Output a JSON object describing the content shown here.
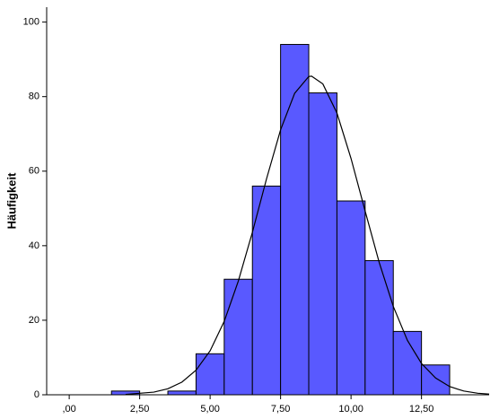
{
  "chart_data": {
    "type": "histogram",
    "y_label": "Häufigkeit",
    "bins": [
      1.5,
      2.5,
      3.5,
      4.5,
      5.5,
      6.5,
      7.5,
      8.5,
      9.5,
      10.5,
      11.5,
      12.5,
      13.5
    ],
    "counts": [
      1,
      0,
      1,
      11,
      31,
      56,
      94,
      81,
      52,
      36,
      17,
      8
    ],
    "color": "#5959ff",
    "curve": {
      "color": "#000000",
      "x": [
        2,
        3,
        3.5,
        4,
        4.5,
        5,
        5.5,
        6,
        6.5,
        7,
        7.5,
        8,
        8.5,
        8.6,
        9,
        9.5,
        10,
        10.5,
        11,
        11.5,
        12,
        12.5,
        13,
        13.5,
        14,
        14.5,
        14.9
      ],
      "y": [
        0.1,
        0.7,
        1.6,
        3.4,
        6.6,
        11.8,
        19.7,
        30.5,
        43.6,
        57.9,
        71.1,
        80.9,
        85.4,
        85.5,
        83.4,
        75.6,
        63.4,
        49.3,
        35.5,
        23.7,
        14.6,
        8.4,
        4.5,
        2.2,
        1.0,
        0.4,
        0.2
      ]
    },
    "xlim": [
      -0.8,
      14.9
    ],
    "ylim": [
      0,
      104
    ],
    "xticks": [
      {
        "value": 0,
        "label": ",00"
      },
      {
        "value": 2.5,
        "label": "2,50"
      },
      {
        "value": 5,
        "label": "5,00"
      },
      {
        "value": 7.5,
        "label": "7,50"
      },
      {
        "value": 10,
        "label": "10,00"
      },
      {
        "value": 12.5,
        "label": "12,50"
      }
    ],
    "yticks": [
      0,
      20,
      40,
      60,
      80,
      100
    ]
  }
}
